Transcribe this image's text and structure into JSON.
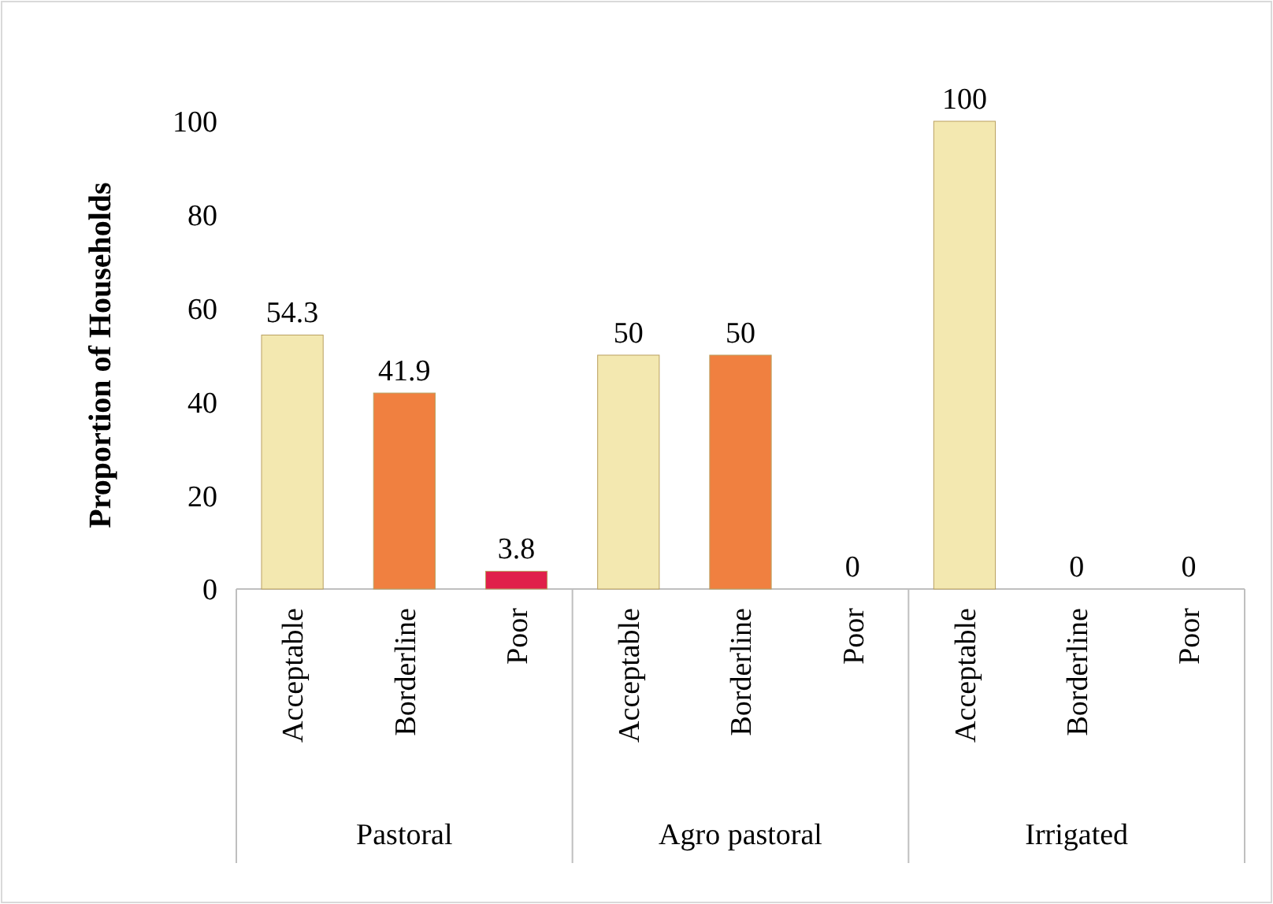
{
  "chart_data": {
    "type": "bar",
    "ylabel": "Proportion of Households",
    "categories": [
      "Acceptable",
      "Borderline",
      "Poor",
      "Acceptable",
      "Borderline",
      "Poor",
      "Acceptable",
      "Borderline",
      "Poor"
    ],
    "values": [
      54.3,
      41.9,
      3.8,
      50,
      50,
      0,
      100,
      0,
      0
    ],
    "colors": [
      "#f3e8b0",
      "#f08040",
      "#e0204a",
      "#f3e8b0",
      "#f08040",
      "#e0204a",
      "#f3e8b0",
      "#f08040",
      "#e0204a"
    ],
    "annotations": [
      "Pastoral",
      "Agro pastoral",
      "Irrigated"
    ],
    "ylim": [
      0,
      100
    ],
    "yticks": [
      0,
      20,
      40,
      60,
      80,
      100
    ],
    "data_labels": true,
    "grid": false
  }
}
